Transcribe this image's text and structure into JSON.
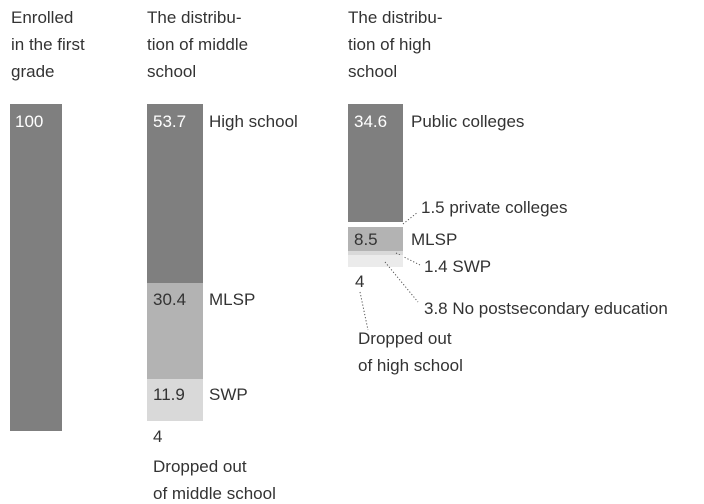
{
  "chart_data": {
    "type": "bar",
    "title": "",
    "columns": [
      {
        "header": "Enrolled\nin the first\ngrade",
        "segments": [
          {
            "value": 100,
            "inside_label": "100",
            "color": "#7f7f7f"
          }
        ]
      },
      {
        "header": "The distribu-\ntion of middle\nschool",
        "segments": [
          {
            "value": 53.7,
            "inside_label": "53.7",
            "label": "High school",
            "color": "#7f7f7f"
          },
          {
            "value": 30.4,
            "inside_label": "30.4",
            "label": "MLSP",
            "color": "#b3b3b3"
          },
          {
            "value": 11.9,
            "inside_label": "11.9",
            "label": "SWP",
            "color": "#d9d9d9"
          },
          {
            "value": 4,
            "below_value": "4",
            "note": "Dropped out\nof middle school"
          }
        ]
      },
      {
        "header": "The distribu-\ntion of high\nschool",
        "segments": [
          {
            "value": 34.6,
            "inside_label": "34.6",
            "label": "Public colleges",
            "color": "#7f7f7f"
          },
          {
            "value": 1.5,
            "callout": "1.5  private colleges",
            "color": "#ffffff"
          },
          {
            "value": 8.5,
            "inside_label": "8.5",
            "label": "MLSP",
            "color": "#b3b3b3"
          },
          {
            "value": 1.4,
            "callout": "1.4  SWP",
            "color": "#d9d9d9"
          },
          {
            "value": 3.8,
            "callout": "3.8  No postsecondary education",
            "color": "#ebebeb"
          },
          {
            "value": 4,
            "below_value": "4",
            "note": "Dropped out\nof high school"
          }
        ]
      }
    ]
  }
}
